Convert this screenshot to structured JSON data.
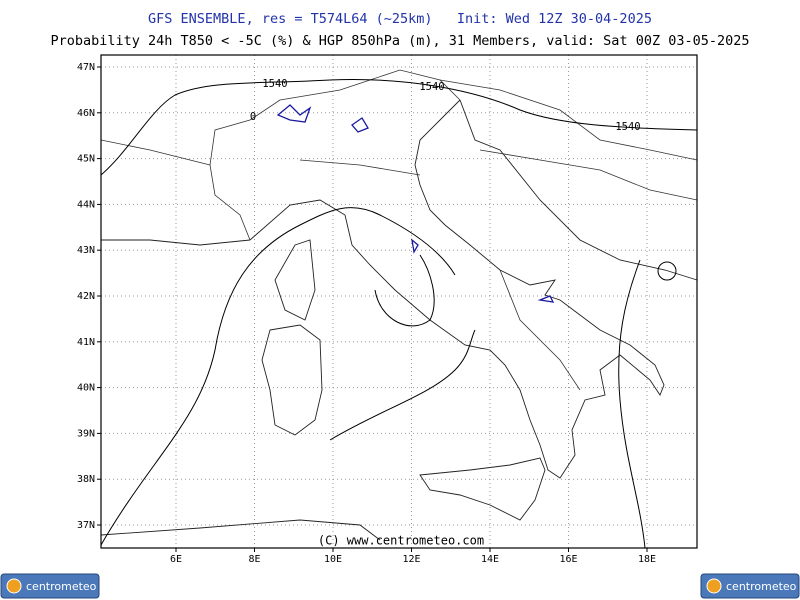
{
  "header": {
    "line1": "GFS ENSEMBLE, res = T574L64 (~25km)   Init: Wed 12Z 30-04-2025",
    "line2": "Probability 24h T850 < -5C (%) & HGP 850hPa (m), 31 Members, valid: Sat 00Z 03-05-2025"
  },
  "map": {
    "lat_labels": [
      "47N",
      "46N",
      "45N",
      "44N",
      "43N",
      "42N",
      "41N",
      "40N",
      "39N",
      "38N",
      "37N"
    ],
    "lon_labels": [
      "6E",
      "8E",
      "10E",
      "12E",
      "14E",
      "16E",
      "18E"
    ],
    "contour_labels": [
      "1540",
      "0",
      "1540",
      "1540"
    ],
    "copyright": "(C) www.centrometeo.com"
  },
  "logos": {
    "left": "centrometeo",
    "right": "centrometeo"
  }
}
